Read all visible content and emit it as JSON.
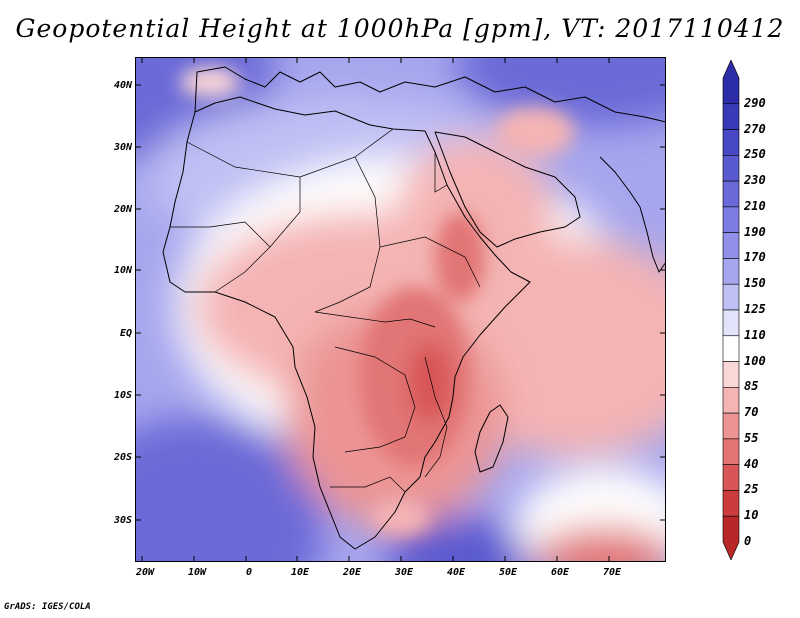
{
  "title": "Geopotential Height at 1000hPa [gpm], VT: 2017110412",
  "credit": "GrADS: IGES/COLA",
  "map": {
    "region": "Africa",
    "lon_range": [
      -25,
      80
    ],
    "lat_range": [
      -37,
      45
    ],
    "lon_ticks": [
      "20W",
      "10W",
      "0",
      "10E",
      "20E",
      "30E",
      "40E",
      "50E",
      "60E",
      "70E"
    ],
    "lat_ticks": [
      "40N",
      "30N",
      "20N",
      "10N",
      "EQ",
      "10S",
      "20S",
      "30S"
    ]
  },
  "colorbar": {
    "labels": [
      "290",
      "270",
      "250",
      "230",
      "210",
      "190",
      "170",
      "150",
      "125",
      "110",
      "100",
      "85",
      "70",
      "55",
      "40",
      "25",
      "10",
      "0"
    ],
    "colors": [
      "#2c2ca8",
      "#3a3ab8",
      "#4848c4",
      "#5a5ad0",
      "#6a6ad8",
      "#7c7ce2",
      "#9090e8",
      "#a6a6ee",
      "#c0c0f4",
      "#e2e2fa",
      "#ffffff",
      "#fad6d6",
      "#f4b4b4",
      "#ec9494",
      "#e27474",
      "#d85656",
      "#cc3c3c",
      "#b82828"
    ]
  },
  "colors": {
    "low": "#c83232",
    "mid": "#ffffff",
    "high": "#3434b0",
    "coast": "#000000"
  }
}
